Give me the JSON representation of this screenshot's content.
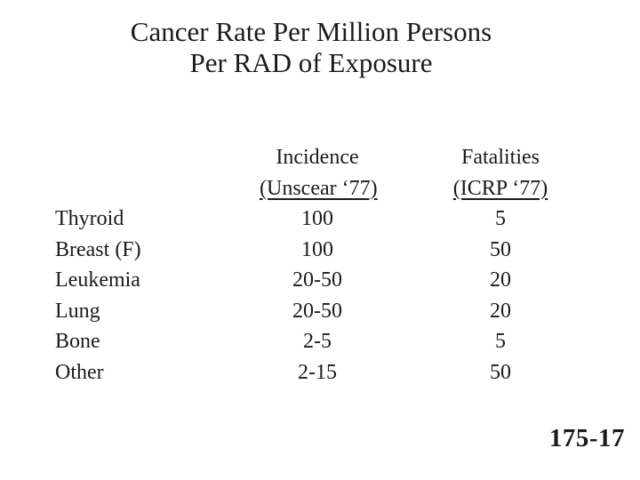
{
  "title": {
    "line1": "Cancer Rate Per Million Persons",
    "line2": "Per RAD of Exposure"
  },
  "table": {
    "columns": [
      {
        "label": "Incidence",
        "sublabel": "(Unscear ‘77)"
      },
      {
        "label": "Fatalities",
        "sublabel": "(ICRP ‘77)"
      }
    ],
    "rows": [
      {
        "name": "Thyroid",
        "incidence": "100",
        "fatalities": "5"
      },
      {
        "name": "Breast (F)",
        "incidence": "100",
        "fatalities": "50"
      },
      {
        "name": "Leukemia",
        "incidence": "20-50",
        "fatalities": "20"
      },
      {
        "name": "Lung",
        "incidence": "20-50",
        "fatalities": "20"
      },
      {
        "name": "Bone",
        "incidence": "2-5",
        "fatalities": "5"
      },
      {
        "name": "Other",
        "incidence": "2-15",
        "fatalities": "50"
      }
    ]
  },
  "slide_number": "175-17",
  "colors": {
    "text": "#1b1b1b",
    "background": "#ffffff"
  }
}
